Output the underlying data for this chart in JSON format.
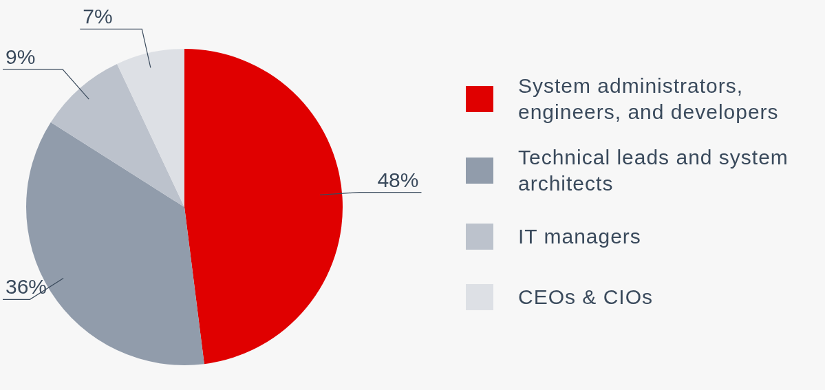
{
  "chart_data": {
    "type": "pie",
    "categories": [
      "System administrators, engineers, and developers",
      "Technical leads and system architects",
      "IT managers",
      "CEOs & CIOs"
    ],
    "values": [
      48,
      36,
      9,
      7
    ],
    "colors": [
      "#e00000",
      "#919cab",
      "#bcc2cc",
      "#dde0e5"
    ],
    "value_labels": [
      "48%",
      "36%",
      "9%",
      "7%"
    ],
    "legend": "right"
  }
}
